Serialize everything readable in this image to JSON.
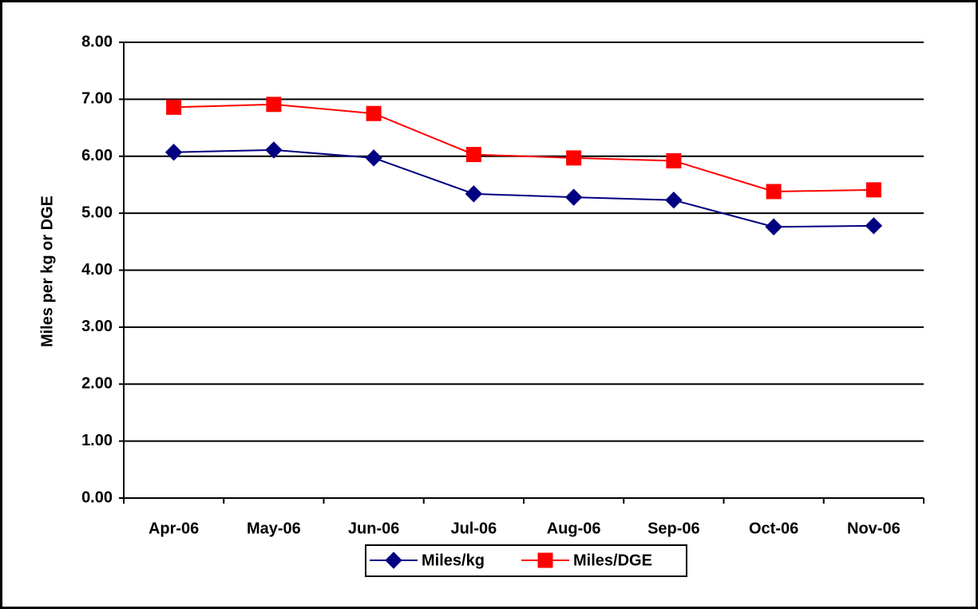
{
  "chart_data": {
    "type": "line",
    "y_label": "Miles per kg or DGE",
    "categories": [
      "Apr-06",
      "May-06",
      "Jun-06",
      "Jul-06",
      "Aug-06",
      "Sep-06",
      "Oct-06",
      "Nov-06"
    ],
    "series": [
      {
        "name": "Miles/kg",
        "color": "#000080",
        "marker": "diamond",
        "values": [
          6.07,
          6.11,
          5.97,
          5.34,
          5.28,
          5.23,
          4.76,
          4.78
        ]
      },
      {
        "name": "Miles/DGE",
        "color": "#ff0000",
        "marker": "square",
        "values": [
          6.86,
          6.91,
          6.75,
          6.03,
          5.97,
          5.92,
          5.38,
          5.41
        ]
      }
    ],
    "ylim": [
      0,
      8
    ],
    "yticks": [
      {
        "value": 0,
        "label": "0.00"
      },
      {
        "value": 1,
        "label": "1.00"
      },
      {
        "value": 2,
        "label": "2.00"
      },
      {
        "value": 3,
        "label": "3.00"
      },
      {
        "value": 4,
        "label": "4.00"
      },
      {
        "value": 5,
        "label": "5.00"
      },
      {
        "value": 6,
        "label": "6.00"
      },
      {
        "value": 7,
        "label": "7.00"
      },
      {
        "value": 8,
        "label": "8.00"
      }
    ],
    "grid": true,
    "legend": "bottom"
  }
}
